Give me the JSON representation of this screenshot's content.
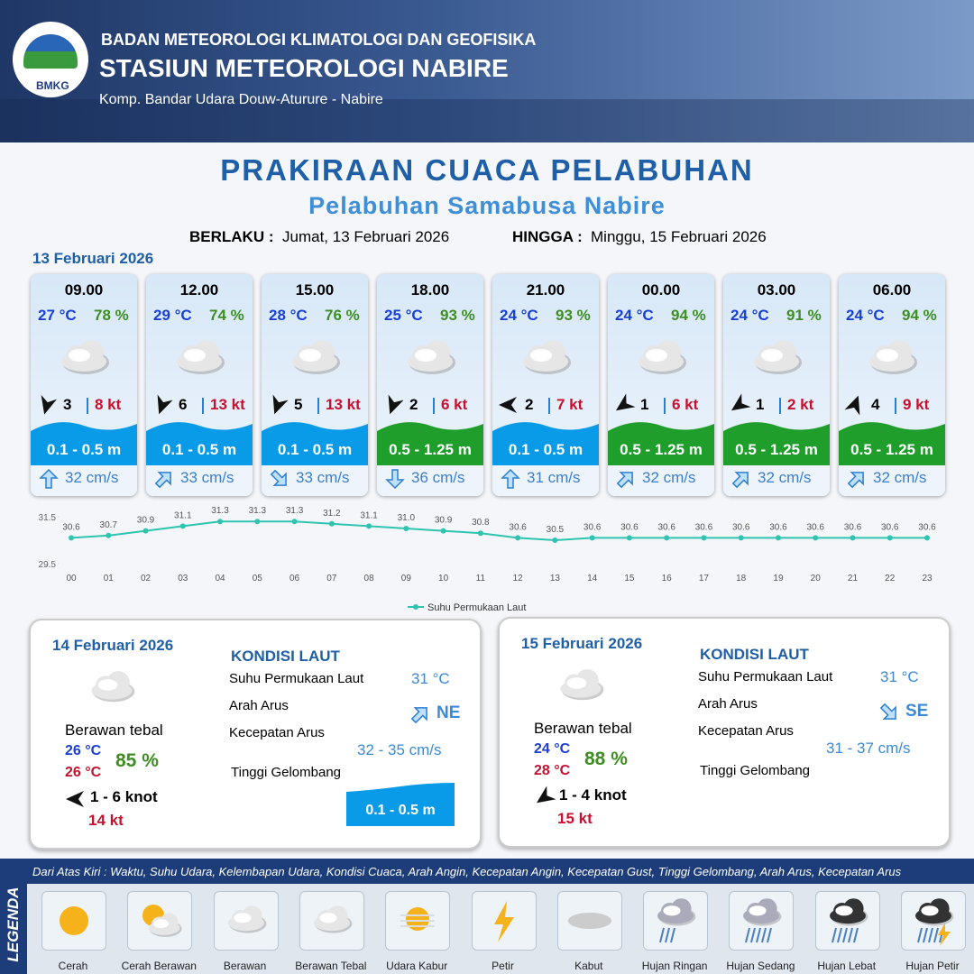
{
  "header": {
    "agency": "BADAN METEOROLOGI KLIMATOLOGI DAN GEOFISIKA",
    "station": "STASIUN METEOROLOGI NABIRE",
    "address": "Komp. Bandar Udara Douw-Aturure - Nabire",
    "logo": "BMKG"
  },
  "title": "PRAKIRAAN CUACA PELABUHAN",
  "subtitle": "Pelabuhan Samabusa Nabire",
  "validity": {
    "from_label": "BERLAKU :",
    "from": "Jumat, 13 Februari 2026",
    "to_label": "HINGGA :",
    "to": "Minggu, 15 Februari 2026"
  },
  "day1": {
    "date": "13 Februari 2026",
    "cards": [
      {
        "time": "09.00",
        "temp": "27 °C",
        "humidity": "78 %",
        "wind": "3",
        "gust": "8 kt",
        "wave": "0.1 - 0.5 m",
        "wave_color": "#0a9be8",
        "current": "32 cm/s"
      },
      {
        "time": "12.00",
        "temp": "29 °C",
        "humidity": "74 %",
        "wind": "6",
        "gust": "13 kt",
        "wave": "0.1 - 0.5 m",
        "wave_color": "#0a9be8",
        "current": "33 cm/s"
      },
      {
        "time": "15.00",
        "temp": "28 °C",
        "humidity": "76 %",
        "wind": "5",
        "gust": "13 kt",
        "wave": "0.1 - 0.5 m",
        "wave_color": "#0a9be8",
        "current": "33 cm/s"
      },
      {
        "time": "18.00",
        "temp": "25 °C",
        "humidity": "93 %",
        "wind": "2",
        "gust": "6 kt",
        "wave": "0.5 - 1.25 m",
        "wave_color": "#1f9e2c",
        "current": "36 cm/s"
      },
      {
        "time": "21.00",
        "temp": "24 °C",
        "humidity": "93 %",
        "wind": "2",
        "gust": "7 kt",
        "wave": "0.1 - 0.5 m",
        "wave_color": "#0a9be8",
        "current": "31 cm/s"
      },
      {
        "time": "00.00",
        "temp": "24 °C",
        "humidity": "94 %",
        "wind": "1",
        "gust": "6 kt",
        "wave": "0.5 - 1.25 m",
        "wave_color": "#1f9e2c",
        "current": "32 cm/s"
      },
      {
        "time": "03.00",
        "temp": "24 °C",
        "humidity": "91 %",
        "wind": "1",
        "gust": "2 kt",
        "wave": "0.5 - 1.25 m",
        "wave_color": "#1f9e2c",
        "current": "32 cm/s"
      },
      {
        "time": "06.00",
        "temp": "24 °C",
        "humidity": "94 %",
        "wind": "4",
        "gust": "9 kt",
        "wave": "0.5 - 1.25 m",
        "wave_color": "#1f9e2c",
        "current": "32 cm/s"
      }
    ]
  },
  "chart_data": {
    "type": "line",
    "x": [
      "00",
      "01",
      "02",
      "03",
      "04",
      "05",
      "06",
      "07",
      "08",
      "09",
      "10",
      "11",
      "12",
      "13",
      "14",
      "15",
      "16",
      "17",
      "18",
      "19",
      "20",
      "21",
      "22",
      "23"
    ],
    "series": [
      {
        "name": "Suhu Permukaan Laut",
        "color": "#2ec4b0",
        "values": [
          30.6,
          30.7,
          30.9,
          31.1,
          31.3,
          31.3,
          31.3,
          31.2,
          31.1,
          31.0,
          30.9,
          30.8,
          30.6,
          30.5,
          30.6,
          30.6,
          30.6,
          30.6,
          30.6,
          30.6,
          30.6,
          30.6,
          30.6,
          30.6
        ],
        "value_labels": [
          "30.6",
          "30.7",
          "30.9",
          "31.1",
          "31.3",
          "31.3",
          "31.3",
          "31.2",
          "31.1",
          "31.0",
          "30.9",
          "30.8",
          "30.6",
          "30.5",
          "30.6",
          "30.6",
          "30.6",
          "30.6",
          "30.6",
          "30.6",
          "30.6",
          "30.6",
          "30.6",
          "30.6"
        ]
      }
    ],
    "ylim": [
      29.5,
      31.5
    ],
    "yticks": [
      29.5,
      31.5
    ],
    "legend": "bottom"
  },
  "days": [
    {
      "date": "14 Februari 2026",
      "condition": "Berawan tebal",
      "temp_min": "26 °C",
      "temp_max": "26 °C",
      "humidity": "85 %",
      "wind": "1 - 6 knot",
      "gust": "14 kt",
      "sea": {
        "heading": "KONDISI LAUT",
        "sst_label": "Suhu Permukaan Laut",
        "sst": "31 °C",
        "dir_label": "Arah Arus",
        "dir": "NE",
        "speed_label": "Kecepatan Arus",
        "speed": "32 - 35 cm/s",
        "wave_label": "Tinggi Gelombang",
        "wave": "0.1 - 0.5 m"
      }
    },
    {
      "date": "15 Februari 2026",
      "condition": "Berawan tebal",
      "temp_min": "24 °C",
      "temp_max": "28 °C",
      "humidity": "88 %",
      "wind": "1 - 4 knot",
      "gust": "15 kt",
      "sea": {
        "heading": "KONDISI LAUT",
        "sst_label": "Suhu Permukaan Laut",
        "sst": "31 °C",
        "dir_label": "Arah Arus",
        "dir": "SE",
        "speed_label": "Kecepatan Arus",
        "speed": "31 - 37 cm/s",
        "wave_label": "Tinggi Gelombang"
      }
    }
  ],
  "legend": {
    "title": "LEGENDA",
    "description": "Dari Atas Kiri : Waktu, Suhu Udara, Kelembapan Udara, Kondisi Cuaca, Arah Angin, Kecepatan Angin, Kecepatan Gust, Tinggi Gelombang, Arah Arus, Kecepatan Arus",
    "items": [
      "Cerah",
      "Cerah Berawan",
      "Berawan",
      "Berawan Tebal",
      "Udara Kabur",
      "Petir",
      "Kabut",
      "Hujan Ringan",
      "Hujan Sedang",
      "Hujan Lebat",
      "Hujan Petir"
    ]
  }
}
